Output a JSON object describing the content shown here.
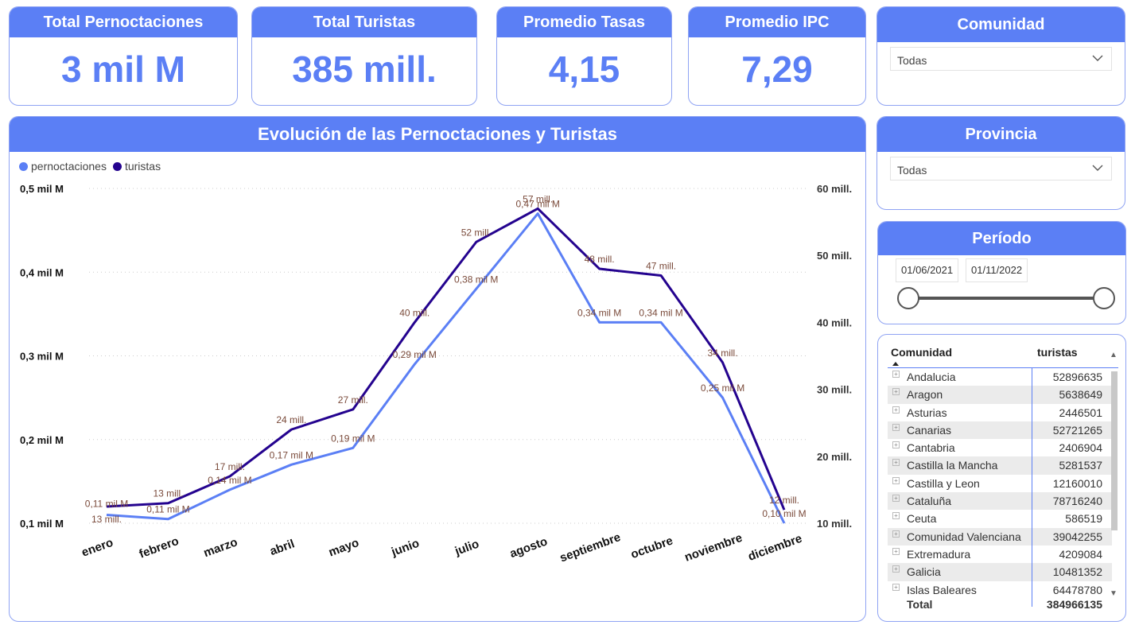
{
  "kpis": [
    {
      "title": "Total Pernoctaciones",
      "value": "3 mil M"
    },
    {
      "title": "Total Turistas",
      "value": "385 mill."
    },
    {
      "title": "Promedio Tasas",
      "value": "4,15"
    },
    {
      "title": "Promedio IPC",
      "value": "7,29"
    }
  ],
  "slicers": {
    "comunidad": {
      "title": "Comunidad",
      "value": "Todas",
      "icon": "chevron-down-icon"
    },
    "provincia": {
      "title": "Provincia",
      "value": "Todas",
      "icon": "chevron-down-icon"
    },
    "periodo": {
      "title": "Período",
      "start": "01/06/2021",
      "end": "01/11/2022"
    }
  },
  "colors": {
    "accent": "#5b7ff5",
    "pernoctaciones": "#5b7ff5",
    "turistas": "#24038f",
    "label": "#7a4a3a"
  },
  "chart_data": {
    "type": "line",
    "title": "Evolución de las Pernoctaciones y Turistas",
    "categories": [
      "enero",
      "febrero",
      "marzo",
      "abril",
      "mayo",
      "junio",
      "julio",
      "agosto",
      "septiembre",
      "octubre",
      "noviembre",
      "diciembre"
    ],
    "legend_placement": "top-left",
    "grid": true,
    "y_left": {
      "ticks": [
        "0,1 mil M",
        "0,2 mil M",
        "0,3 mil M",
        "0,4 mil M",
        "0,5 mil M"
      ],
      "range": [
        0.1,
        0.5
      ]
    },
    "y_right": {
      "ticks": [
        "10 mill.",
        "20 mill.",
        "30 mill.",
        "40 mill.",
        "50 mill.",
        "60 mill."
      ],
      "range": [
        10,
        60
      ]
    },
    "series": [
      {
        "name": "pernoctaciones",
        "axis": "left",
        "values": [
          0.11,
          0.105,
          0.14,
          0.17,
          0.19,
          0.29,
          0.38,
          0.47,
          0.34,
          0.34,
          0.25,
          0.1
        ],
        "labels": [
          "0,11 mil M",
          "0,11 mil M",
          "0,14 mil M",
          "0,17 mil M",
          "0,19 mil M",
          "0,29 mil M",
          "0,38 mil M",
          "0,47 mil M",
          "0,34 mil M",
          "0,34 mil M",
          "0,25 mil M",
          "0,10 mil M"
        ]
      },
      {
        "name": "turistas",
        "axis": "right",
        "values": [
          12.5,
          13,
          17,
          24,
          27,
          40,
          52,
          57,
          48,
          47,
          34,
          12
        ],
        "labels": [
          "13 mill.",
          "13 mill.",
          "17 mill.",
          "24 mill.",
          "27 mill.",
          "40 mill.",
          "52 mill.",
          "57 mill.",
          "48 mill.",
          "47 mill.",
          "34 mill.",
          "12 mill."
        ]
      }
    ]
  },
  "table": {
    "headers": {
      "comunidad": "Comunidad",
      "turistas": "turistas"
    },
    "rows": [
      {
        "name": "Andalucia",
        "value": "52896635"
      },
      {
        "name": "Aragon",
        "value": "5638649"
      },
      {
        "name": "Asturias",
        "value": "2446501"
      },
      {
        "name": "Canarias",
        "value": "52721265"
      },
      {
        "name": "Cantabria",
        "value": "2406904"
      },
      {
        "name": "Castilla la Mancha",
        "value": "5281537"
      },
      {
        "name": "Castilla y Leon",
        "value": "12160010"
      },
      {
        "name": "Cataluña",
        "value": "78716240"
      },
      {
        "name": "Ceuta",
        "value": "586519"
      },
      {
        "name": "Comunidad Valenciana",
        "value": "39042255"
      },
      {
        "name": "Extremadura",
        "value": "4209084"
      },
      {
        "name": "Galicia",
        "value": "10481352"
      },
      {
        "name": "Islas Baleares",
        "value": "64478780"
      }
    ],
    "total": {
      "label": "Total",
      "value": "384966135"
    }
  }
}
